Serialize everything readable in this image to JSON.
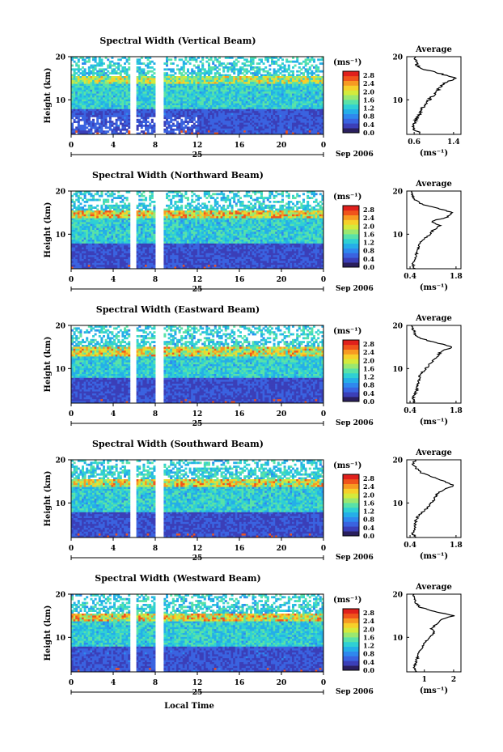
{
  "colors": {
    "scale": [
      "#2a1f5e",
      "#3b3fb8",
      "#3a63e0",
      "#2f88ee",
      "#25aee8",
      "#2fd0d4",
      "#59e2a8",
      "#9ae870",
      "#d4ea3c",
      "#f6d02a",
      "#f79a22",
      "#f0541c",
      "#e0201c"
    ],
    "missing": "#ffffff",
    "axis": "#000000"
  },
  "chart_data": [
    {
      "type": "heatmap",
      "title": "Spectral Width (Vertical Beam)",
      "ylabel": "Height (km)",
      "xlabel": "",
      "date_label": "25",
      "month_label": "Sep 2006",
      "x_ticks": [
        "0",
        "4",
        "8",
        "12",
        "16",
        "20",
        "0"
      ],
      "x_range": [
        0,
        24
      ],
      "y_ticks": [
        "10",
        "20"
      ],
      "y_range": [
        2,
        20
      ],
      "colorbar": {
        "unit": "(ms⁻¹)",
        "ticks": [
          "0.0",
          "0.4",
          "0.8",
          "1.2",
          "1.6",
          "2.0",
          "2.4",
          "2.8"
        ],
        "range": [
          0,
          3.0
        ]
      },
      "data_gaps_hours": [
        [
          5.8,
          6.0
        ],
        [
          8.2,
          8.6
        ]
      ],
      "features": {
        "blank_above_km": 17.5,
        "high_band_km": [
          13.5,
          15.5
        ],
        "high_band_value": 2.0,
        "low_layer_km": [
          2,
          8
        ],
        "low_value": 0.5,
        "sparse_below_km": 6,
        "sparse_until_hour": 12
      },
      "profile": {
        "title": "Average",
        "xlabel": "(ms⁻¹)",
        "x_ticks": [
          "0.6",
          "1.4"
        ],
        "x_tick_values": [
          0.6,
          1.4
        ],
        "x_range": [
          0.45,
          1.55
        ],
        "y_ticks": [
          "10",
          "20"
        ],
        "y_range": [
          2,
          20
        ],
        "heights": [
          2,
          3,
          4,
          5,
          6,
          7,
          8,
          9,
          10,
          11,
          12,
          13,
          14,
          15,
          16,
          17,
          18,
          19,
          20
        ],
        "values": [
          0.75,
          0.62,
          0.6,
          0.62,
          0.68,
          0.72,
          0.76,
          0.82,
          0.9,
          0.98,
          1.06,
          1.12,
          1.22,
          1.45,
          1.15,
          0.82,
          0.65,
          0.62,
          0.62
        ]
      }
    },
    {
      "type": "heatmap",
      "title": "Spectral Width (Northward Beam)",
      "ylabel": "Height (km)",
      "xlabel": "",
      "date_label": "25",
      "month_label": "Sep 2006",
      "x_ticks": [
        "0",
        "4",
        "8",
        "12",
        "16",
        "20",
        "0"
      ],
      "x_range": [
        0,
        24
      ],
      "y_ticks": [
        "10",
        "20"
      ],
      "y_range": [
        2,
        20
      ],
      "colorbar": {
        "unit": "(ms⁻¹)",
        "ticks": [
          "0.0",
          "0.4",
          "0.8",
          "1.2",
          "1.6",
          "2.0",
          "2.4",
          "2.8"
        ],
        "range": [
          0,
          3.0
        ]
      },
      "data_gaps_hours": [
        [
          5.8,
          6.0
        ],
        [
          8.2,
          8.6
        ]
      ],
      "features": {
        "blank_above_km": 17.0,
        "high_band_km": [
          13.5,
          15.5
        ],
        "high_band_value": 2.3,
        "low_layer_km": [
          2,
          8
        ],
        "low_value": 0.45,
        "sparse_below_km": 0,
        "sparse_until_hour": 0
      },
      "profile": {
        "title": "Average",
        "xlabel": "(ms⁻¹)",
        "x_ticks": [
          "0.4",
          "1.8"
        ],
        "x_tick_values": [
          0.4,
          1.8
        ],
        "x_range": [
          0.3,
          1.95
        ],
        "y_ticks": [
          "10",
          "20"
        ],
        "y_range": [
          2,
          20
        ],
        "heights": [
          2,
          3,
          4,
          5,
          6,
          7,
          8,
          9,
          10,
          11,
          12,
          13,
          14,
          15,
          16,
          17,
          18,
          19,
          20
        ],
        "values": [
          0.55,
          0.48,
          0.52,
          0.58,
          0.62,
          0.66,
          0.72,
          0.85,
          1.0,
          1.12,
          1.3,
          1.05,
          1.55,
          1.7,
          1.25,
          0.75,
          0.55,
          0.48,
          0.45
        ]
      }
    },
    {
      "type": "heatmap",
      "title": "Spectral Width (Eastward Beam)",
      "ylabel": "Height (km)",
      "xlabel": "",
      "date_label": "25",
      "month_label": "Sep 2006",
      "x_ticks": [
        "0",
        "4",
        "8",
        "12",
        "16",
        "20",
        "0"
      ],
      "x_range": [
        0,
        24
      ],
      "y_ticks": [
        "10",
        "20"
      ],
      "y_range": [
        2,
        20
      ],
      "colorbar": {
        "unit": "(ms⁻¹)",
        "ticks": [
          "0.0",
          "0.4",
          "0.8",
          "1.2",
          "1.6",
          "2.0",
          "2.4",
          "2.8"
        ],
        "range": [
          0,
          3.0
        ]
      },
      "data_gaps_hours": [
        [
          5.8,
          6.0
        ],
        [
          8.2,
          8.6
        ]
      ],
      "features": {
        "blank_above_km": 16.5,
        "high_band_km": [
          13.0,
          15.0
        ],
        "high_band_value": 2.2,
        "low_layer_km": [
          2,
          8
        ],
        "low_value": 0.45,
        "sparse_below_km": 0,
        "sparse_until_hour": 0
      },
      "profile": {
        "title": "Average",
        "xlabel": "(ms⁻¹)",
        "x_ticks": [
          "0.4",
          "1.8"
        ],
        "x_tick_values": [
          0.4,
          1.8
        ],
        "x_range": [
          0.3,
          1.95
        ],
        "y_ticks": [
          "10",
          "20"
        ],
        "y_range": [
          2,
          20
        ],
        "heights": [
          2,
          3,
          4,
          5,
          6,
          7,
          8,
          9,
          10,
          11,
          12,
          13,
          14,
          15,
          16,
          17,
          18,
          19,
          20
        ],
        "values": [
          0.55,
          0.48,
          0.55,
          0.6,
          0.62,
          0.65,
          0.68,
          0.75,
          0.88,
          1.0,
          1.1,
          1.25,
          1.35,
          1.7,
          1.2,
          0.7,
          0.55,
          0.5,
          0.45
        ]
      }
    },
    {
      "type": "heatmap",
      "title": "Spectral Width (Southward Beam)",
      "ylabel": "Height (km)",
      "xlabel": "",
      "date_label": "25",
      "month_label": "Sep 2006",
      "x_ticks": [
        "0",
        "4",
        "8",
        "12",
        "16",
        "20",
        "0"
      ],
      "x_range": [
        0,
        24
      ],
      "y_ticks": [
        "10",
        "20"
      ],
      "y_range": [
        2,
        20
      ],
      "colorbar": {
        "unit": "(ms⁻¹)",
        "ticks": [
          "0.0",
          "0.4",
          "0.8",
          "1.2",
          "1.6",
          "2.0",
          "2.4",
          "2.8"
        ],
        "range": [
          0,
          3.0
        ]
      },
      "data_gaps_hours": [
        [
          5.8,
          6.0
        ],
        [
          8.2,
          8.6
        ]
      ],
      "features": {
        "blank_above_km": 18.0,
        "high_band_km": [
          13.5,
          15.5
        ],
        "high_band_value": 2.2,
        "low_layer_km": [
          2,
          8
        ],
        "low_value": 0.45,
        "sparse_below_km": 0,
        "sparse_until_hour": 0
      },
      "profile": {
        "title": "Average",
        "xlabel": "(ms⁻¹)",
        "x_ticks": [
          "0.4",
          "1.8"
        ],
        "x_tick_values": [
          0.4,
          1.8
        ],
        "x_range": [
          0.3,
          1.95
        ],
        "y_ticks": [
          "10",
          "20"
        ],
        "y_range": [
          2,
          20
        ],
        "heights": [
          2,
          3,
          4,
          5,
          6,
          7,
          8,
          9,
          10,
          11,
          12,
          13,
          14,
          15,
          16,
          17,
          18,
          19,
          20
        ],
        "values": [
          0.55,
          0.48,
          0.52,
          0.55,
          0.58,
          0.65,
          0.8,
          0.95,
          1.05,
          1.15,
          1.2,
          1.4,
          1.75,
          1.45,
          1.1,
          0.75,
          0.6,
          0.5,
          0.55
        ]
      }
    },
    {
      "type": "heatmap",
      "title": "Spectral Width (Westward Beam)",
      "ylabel": "Height (km)",
      "xlabel": "Local Time",
      "date_label": "25",
      "month_label": "Sep 2006",
      "x_ticks": [
        "0",
        "4",
        "8",
        "12",
        "16",
        "20",
        "0"
      ],
      "x_range": [
        0,
        24
      ],
      "y_ticks": [
        "10",
        "20"
      ],
      "y_range": [
        2,
        20
      ],
      "colorbar": {
        "unit": "(ms⁻¹)",
        "ticks": [
          "0.0",
          "0.4",
          "0.8",
          "1.2",
          "1.6",
          "2.0",
          "2.4",
          "2.8"
        ],
        "range": [
          0,
          3.0
        ]
      },
      "data_gaps_hours": [
        [
          5.8,
          6.0
        ],
        [
          8.2,
          8.6
        ]
      ],
      "features": {
        "blank_above_km": 17.5,
        "high_band_km": [
          13.5,
          15.5
        ],
        "high_band_value": 2.3,
        "low_layer_km": [
          2,
          8
        ],
        "low_value": 0.5,
        "sparse_below_km": 0,
        "sparse_until_hour": 0
      },
      "profile": {
        "title": "Average",
        "xlabel": "(ms⁻¹)",
        "x_ticks": [
          "1",
          "2"
        ],
        "x_tick_values": [
          1,
          2
        ],
        "x_range": [
          0.4,
          2.25
        ],
        "y_ticks": [
          "10",
          "20"
        ],
        "y_range": [
          2,
          20
        ],
        "heights": [
          2,
          3,
          4,
          5,
          6,
          7,
          8,
          9,
          10,
          11,
          12,
          13,
          14,
          15,
          16,
          17,
          18,
          19,
          20
        ],
        "values": [
          0.75,
          0.65,
          0.7,
          0.75,
          0.8,
          0.85,
          0.95,
          1.05,
          1.2,
          1.35,
          1.25,
          1.4,
          1.55,
          2.0,
          1.35,
          0.85,
          0.7,
          0.65,
          0.65
        ]
      }
    }
  ]
}
